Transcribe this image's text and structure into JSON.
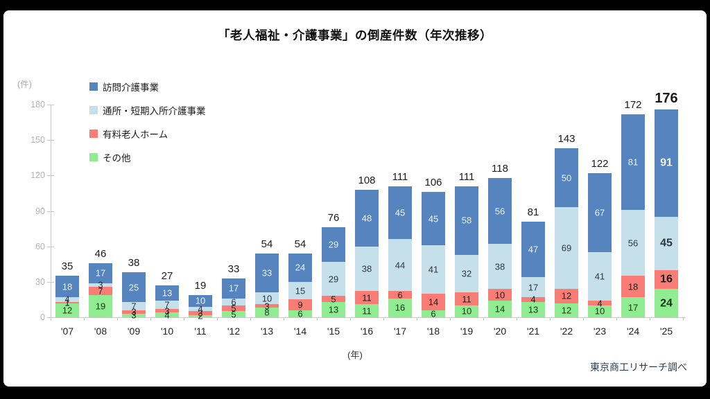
{
  "title": "「老人福祉・介護事業」の倒産件数（年次推移）",
  "y_axis": {
    "unit_label": "(件)",
    "ticks": [
      180,
      150,
      120,
      90,
      60,
      30,
      0
    ],
    "max": 180
  },
  "x_axis": {
    "unit_label": "(年)"
  },
  "footer": {
    "source": "東京商工リサーチ調べ"
  },
  "colors": {
    "visit_care": "#5584BE",
    "day_short_care": "#C5E0EA",
    "paid_home": "#FA7D75",
    "other": "#90EC90",
    "axis": "#c9c9c9",
    "total_label": "#1a1a1a"
  },
  "chart_data": {
    "type": "bar",
    "stacked": true,
    "title": "「老人福祉・介護事業」の倒産件数（年次推移）",
    "xlabel": "(年)",
    "ylabel": "(件)",
    "ylim": [
      0,
      180
    ],
    "grid": false,
    "legend_position": "top-left",
    "emphasize_last_category": true,
    "categories": [
      "'07",
      "'08",
      "'09",
      "'10",
      "'11",
      "'12",
      "'13",
      "'14",
      "'15",
      "'16",
      "'17",
      "'18",
      "'19",
      "'20",
      "'21",
      "'22",
      "'23",
      "'24",
      "'25"
    ],
    "series": [
      {
        "key": "visit-care",
        "name": "訪問介護事業",
        "color": "#5584BE",
        "label_color": "#f0f6fc",
        "values": [
          18,
          17,
          25,
          13,
          10,
          17,
          33,
          24,
          29,
          48,
          45,
          45,
          58,
          56,
          47,
          50,
          67,
          81,
          91
        ]
      },
      {
        "key": "day-short-care",
        "name": "通所・短期入所介護事業",
        "color": "#C5E0EA",
        "label_color": "#2e3640",
        "values": [
          4,
          3,
          7,
          7,
          4,
          6,
          10,
          15,
          29,
          38,
          44,
          41,
          32,
          38,
          17,
          69,
          41,
          56,
          45
        ]
      },
      {
        "key": "paid-home",
        "name": "有料老人ホーム",
        "color": "#FA7D75",
        "label_color": "#1a1a1a",
        "values": [
          1,
          7,
          3,
          3,
          3,
          5,
          3,
          9,
          5,
          11,
          6,
          14,
          11,
          10,
          4,
          12,
          4,
          18,
          16
        ]
      },
      {
        "key": "other",
        "name": "その他",
        "color": "#90EC90",
        "label_color": "#153315",
        "values": [
          12,
          19,
          3,
          4,
          2,
          5,
          8,
          6,
          13,
          11,
          16,
          6,
          10,
          14,
          13,
          12,
          10,
          17,
          24
        ]
      }
    ],
    "totals": [
      35,
      46,
      38,
      27,
      19,
      33,
      54,
      54,
      76,
      108,
      111,
      106,
      111,
      118,
      81,
      143,
      122,
      172,
      176
    ]
  }
}
